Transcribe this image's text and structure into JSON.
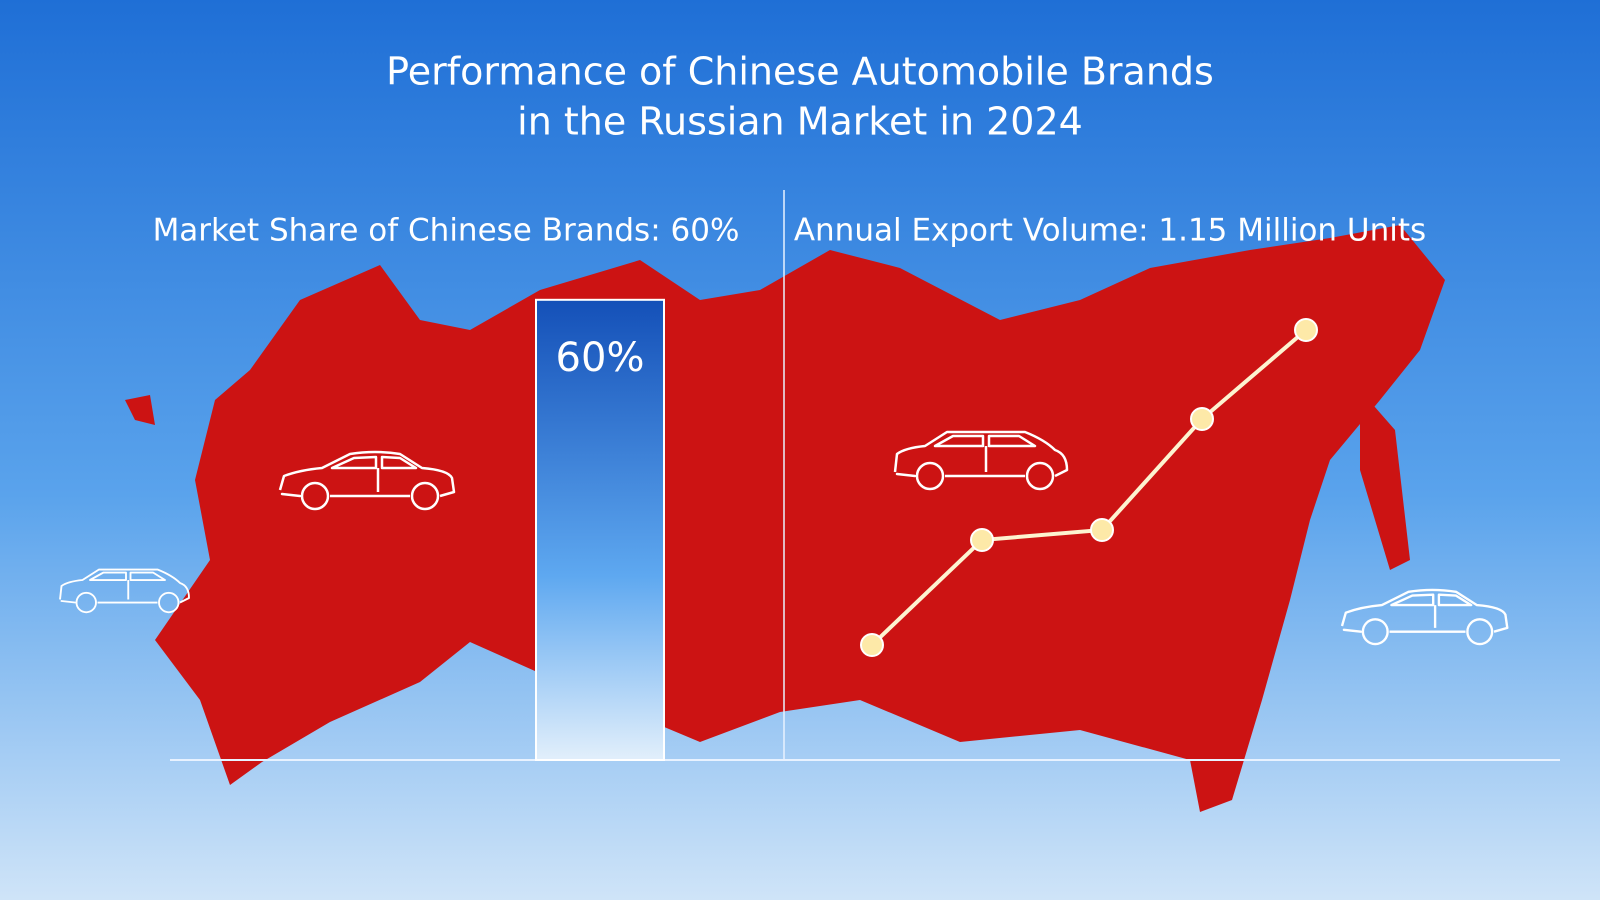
{
  "title": [
    "Performance of Chinese Automobile Brands",
    "in the Russian Market in 2024"
  ],
  "chart_data": {
    "type": "bar",
    "title": "Market Share of Chinese Brands:  60%",
    "values": [
      60
    ],
    "value_labels": [
      "60%"
    ],
    "ylim": [
      0,
      100
    ]
  },
  "right_panel": {
    "title": "Annual Export Volume: 1.15 Million Units"
  }
}
